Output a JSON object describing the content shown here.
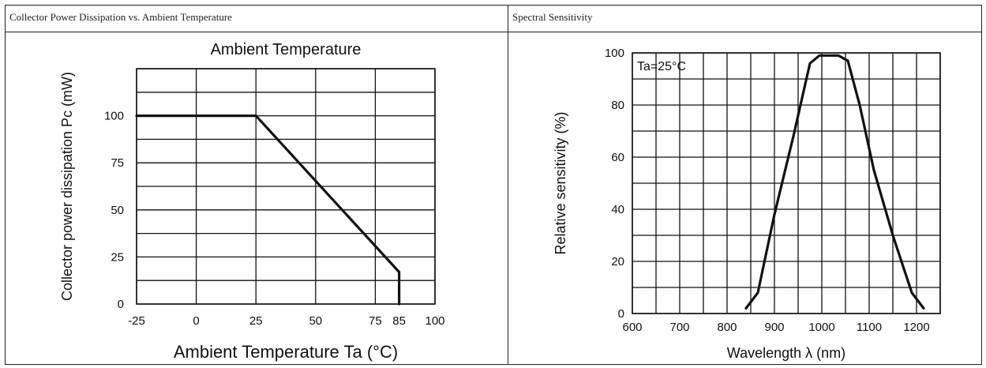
{
  "chart_data": [
    {
      "type": "line",
      "panel_title": "Collector Power Dissipation vs. Ambient Temperature",
      "title": "Ambient Temperature",
      "xlabel": "Ambient Temperature Ta (°C)",
      "ylabel": "Collector power dissipation Pc (mW)",
      "xlim": [
        -25,
        100
      ],
      "ylim": [
        0,
        125
      ],
      "x_ticks": [
        -25,
        0,
        25,
        50,
        75,
        85,
        100
      ],
      "y_ticks": [
        0,
        25,
        50,
        75,
        100
      ],
      "x_grid": [
        -25,
        0,
        25,
        50,
        75,
        100
      ],
      "y_grid": [
        0,
        12.5,
        25,
        37.5,
        50,
        62.5,
        75,
        87.5,
        100,
        112.5,
        125
      ],
      "grid": true,
      "series": [
        {
          "x": [
            -25,
            25,
            85,
            85
          ],
          "y": [
            100,
            100,
            17,
            0
          ]
        }
      ]
    },
    {
      "type": "line",
      "panel_title": "Spectral Sensitivity",
      "xlabel": "Wavelength λ (nm)",
      "ylabel": "Relative sensitivity (%)",
      "annotation": "Ta=25°C",
      "xlim": [
        600,
        1250
      ],
      "ylim": [
        0,
        100
      ],
      "x_ticks": [
        600,
        700,
        800,
        900,
        1000,
        1100,
        1200
      ],
      "y_ticks": [
        0,
        20,
        40,
        60,
        80,
        100
      ],
      "x_grid": [
        600,
        650,
        700,
        750,
        800,
        850,
        900,
        950,
        1000,
        1050,
        1100,
        1150,
        1200,
        1250
      ],
      "y_grid": [
        0,
        10,
        20,
        30,
        40,
        50,
        60,
        70,
        80,
        90,
        100
      ],
      "grid": true,
      "series": [
        {
          "x": [
            840,
            865,
            900,
            940,
            975,
            995,
            1015,
            1035,
            1055,
            1080,
            1110,
            1150,
            1190,
            1215
          ],
          "y": [
            2,
            8,
            38,
            68,
            96,
            99,
            99,
            99,
            97,
            80,
            55,
            30,
            8,
            2
          ]
        }
      ]
    }
  ]
}
